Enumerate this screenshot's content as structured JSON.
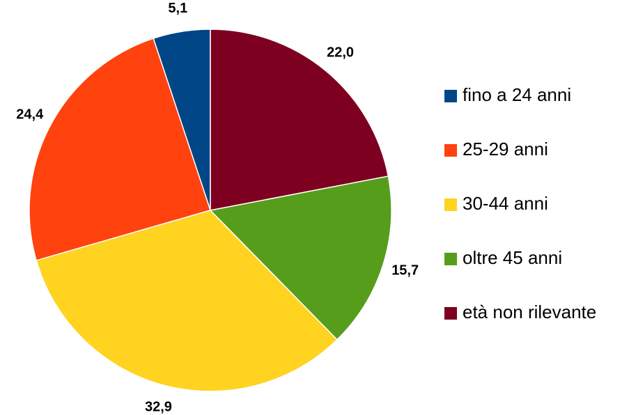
{
  "chart_data": {
    "type": "pie",
    "categories": [
      "fino a 24 anni",
      "25-29 anni",
      "30-44 anni",
      "oltre 45 anni",
      "età non rilevante"
    ],
    "values": [
      5.1,
      24.4,
      32.9,
      15.7,
      22.0
    ],
    "value_labels": [
      "5,1",
      "24,4",
      "32,9",
      "15,7",
      "22,0"
    ],
    "colors": [
      "#004586",
      "#ff420e",
      "#ffd320",
      "#579d1c",
      "#7e0021"
    ],
    "legend": "right"
  }
}
